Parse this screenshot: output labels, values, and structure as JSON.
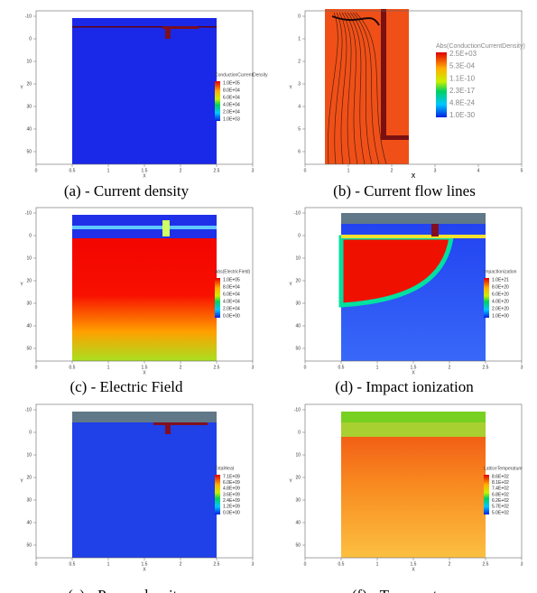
{
  "panels": [
    {
      "caption": "(a) - Current density",
      "x_label": "X",
      "y_label": "Y",
      "colorbar_title": "ConductionCurrentDensity",
      "colorbar_labels": [
        "1.0E+05",
        "8.0E+04",
        "6.0E+04",
        "4.0E+04",
        "2.0E+04",
        "1.0E+03"
      ],
      "x_ticks": [
        "0",
        "0.5",
        "1",
        "1.5",
        "2",
        "2.5",
        "3"
      ],
      "y_ticks": [
        "-10",
        "0",
        "10",
        "20",
        "30",
        "40",
        "50"
      ]
    },
    {
      "caption": "(b) - Current flow lines",
      "x_label": "X",
      "y_label": "Y",
      "colorbar_title": "Abs(ConductionCurrentDensity)",
      "colorbar_labels": [
        "2.5E+03",
        "5.3E-04",
        "1.1E-10",
        "2.3E-17",
        "4.8E-24",
        "1.0E-30"
      ],
      "x_ticks": [
        "0",
        "1",
        "2",
        "3",
        "4",
        "5"
      ],
      "y_ticks": [
        "0",
        "1",
        "2",
        "3",
        "4",
        "5",
        "6"
      ]
    },
    {
      "caption": "(c) - Electric Field",
      "x_label": "X",
      "y_label": "Y",
      "colorbar_title": "Abs(ElectricField)",
      "colorbar_labels": [
        "1.0E+05",
        "8.0E+04",
        "6.0E+04",
        "4.0E+04",
        "2.0E+04",
        "0.0E+00"
      ],
      "x_ticks": [
        "0",
        "0.5",
        "1",
        "1.5",
        "2",
        "2.5",
        "3"
      ],
      "y_ticks": [
        "-10",
        "0",
        "10",
        "20",
        "30",
        "40",
        "50"
      ]
    },
    {
      "caption": "(d) - Impact ionization",
      "x_label": "X",
      "y_label": "Y",
      "colorbar_title": "ImpactIonization",
      "colorbar_labels": [
        "1.0E+21",
        "8.0E+20",
        "6.0E+20",
        "4.0E+20",
        "2.0E+20",
        "1.0E+00"
      ],
      "x_ticks": [
        "0",
        "0.5",
        "1",
        "1.5",
        "2",
        "2.5",
        "3"
      ],
      "y_ticks": [
        "-10",
        "0",
        "10",
        "20",
        "30",
        "40",
        "50"
      ]
    },
    {
      "caption": "(e) - Power density",
      "x_label": "X",
      "y_label": "Y",
      "colorbar_title": "TotalHeat",
      "colorbar_labels": [
        "7.1E+09",
        "6.0E+09",
        "4.8E+09",
        "3.6E+09",
        "2.4E+09",
        "1.2E+09",
        "0.0E+00"
      ],
      "x_ticks": [
        "0",
        "0.5",
        "1",
        "1.5",
        "2",
        "2.5",
        "3"
      ],
      "y_ticks": [
        "-10",
        "0",
        "10",
        "20",
        "30",
        "40",
        "50"
      ]
    },
    {
      "caption": "(f) - Temperature",
      "x_label": "X",
      "y_label": "Y",
      "colorbar_title": "LatticeTemperature",
      "colorbar_labels": [
        "8.6E+02",
        "8.1E+02",
        "7.4E+02",
        "6.8E+02",
        "6.2E+02",
        "5.7E+02",
        "5.0E+02"
      ],
      "x_ticks": [
        "0",
        "0.5",
        "1",
        "1.5",
        "2",
        "2.5",
        "3"
      ],
      "y_ticks": [
        "-10",
        "0",
        "10",
        "20",
        "30",
        "40",
        "50"
      ]
    }
  ]
}
